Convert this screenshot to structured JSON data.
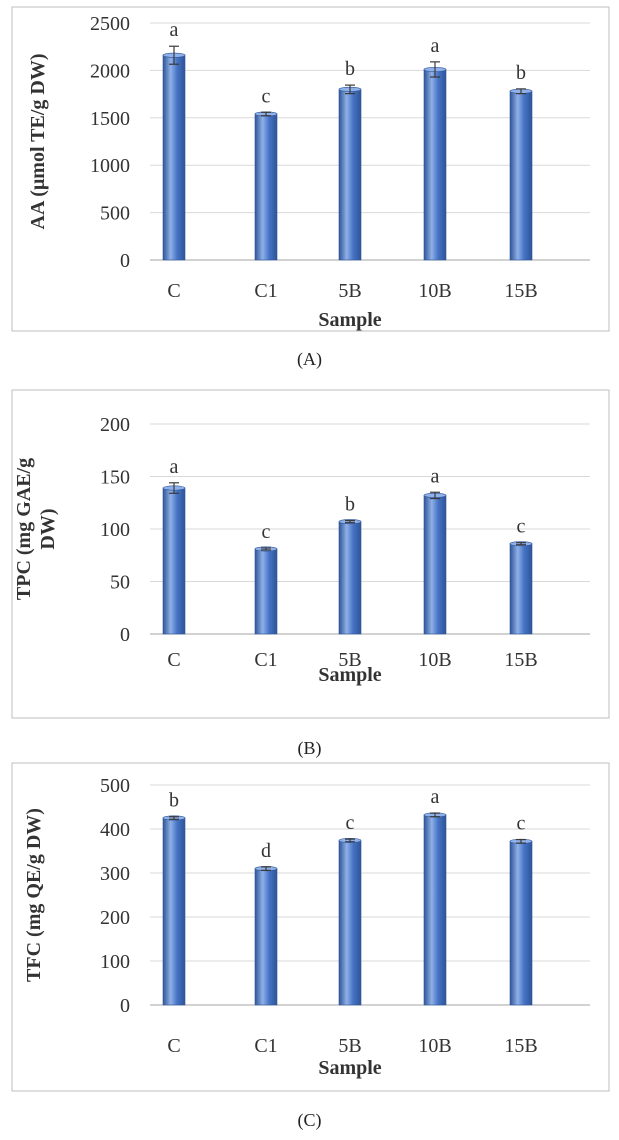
{
  "colors": {
    "bar": "#4472c4",
    "bar_dark": "#2f5597",
    "bar_light": "#8fb0e8",
    "grid": "#d9d9d9",
    "frame": "#bfbfbf",
    "text": "#333333"
  },
  "chart_data": [
    {
      "type": "bar",
      "caption": "(A)",
      "ylabel": "AA (μmol TE/g DW)",
      "xlabel": "Sample",
      "categories": [
        "C",
        "C1",
        "5B",
        "10B",
        "15B"
      ],
      "values": [
        2160,
        1540,
        1800,
        2010,
        1780
      ],
      "errors": [
        95,
        18,
        45,
        80,
        25
      ],
      "letters": [
        "a",
        "c",
        "b",
        "a",
        "b"
      ],
      "ylim": [
        0,
        2500
      ],
      "yticks": [
        0,
        500,
        1000,
        1500,
        2000,
        2500
      ],
      "grid": true
    },
    {
      "type": "bar",
      "caption": "(B)",
      "ylabel": "TPC (mg GAE/g DW)",
      "xlabel": "Sample",
      "categories": [
        "C",
        "C1",
        "5B",
        "10B",
        "15B"
      ],
      "values": [
        139,
        81,
        107,
        132,
        86
      ],
      "errors": [
        5,
        1,
        1,
        3,
        1
      ],
      "letters": [
        "a",
        "c",
        "b",
        "a",
        "c"
      ],
      "ylim": [
        0,
        200
      ],
      "yticks": [
        0,
        50,
        100,
        150,
        200
      ],
      "grid": true
    },
    {
      "type": "bar",
      "caption": "(C)",
      "ylabel": "TFC (mg QE/g DW)",
      "xlabel": "Sample",
      "categories": [
        "C",
        "C1",
        "5B",
        "10B",
        "15B"
      ],
      "values": [
        425,
        310,
        374,
        432,
        372
      ],
      "errors": [
        3,
        4,
        3,
        4,
        4
      ],
      "letters": [
        "b",
        "d",
        "c",
        "a",
        "c"
      ],
      "ylim": [
        0,
        500
      ],
      "yticks": [
        0,
        100,
        200,
        300,
        400,
        500
      ],
      "grid": true
    }
  ]
}
